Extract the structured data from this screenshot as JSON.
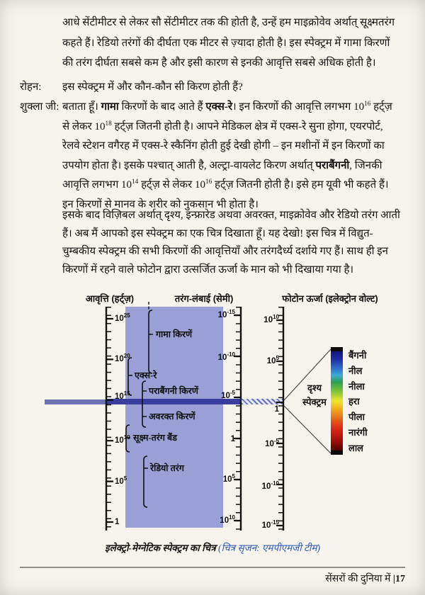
{
  "colors": {
    "page_bg": "#f7f4ee",
    "panel": "#9aa0d6",
    "visible_band": "#3a3e9f",
    "caption_credit_blue": "#2d59ad"
  },
  "intro": {
    "lines": [
      [
        {
          "t": "आधे सेंटीमीटर से लेकर सौ सेंटीमीटर तक की होती है, उन्हें हम माइक्रोवेव अर्थात् सूक्ष्मतरंग"
        }
      ],
      [
        {
          "t": "कहते हैं। रेडियो तरंगों की दीर्घता एक मीटर से ज़्यादा होती है। इस स्पेक्ट्रम में गामा किरणों"
        }
      ],
      [
        {
          "t": "की तरंग दीर्घता सबसे कम है और इसी कारण से इनकी आवृत्ति सबसे अधिक होती है।"
        }
      ]
    ]
  },
  "dialog": {
    "rohan_speaker": "रोहन:",
    "rohan_line": [
      [
        {
          "t": "इस स्पेक्ट्रम में और कौन-कौन सी किरण होती हैं?"
        }
      ]
    ],
    "shukla_speaker": "शुक्ला जी:",
    "shukla_lines": [
      [
        {
          "t": "बताता हूँ। "
        },
        {
          "t": "गामा",
          "b": true
        },
        {
          "t": " किरणों के बाद आते हैं "
        },
        {
          "t": "एक्स-रे",
          "b": true
        },
        {
          "t": "। इन किरणों की आवृत्ति लगभग 10"
        },
        {
          "t": "16",
          "sup": true
        },
        {
          "t": " हर्ट्ज़"
        }
      ],
      [
        {
          "t": "से लेकर 10"
        },
        {
          "t": "18",
          "sup": true
        },
        {
          "t": " हर्ट्ज़ जितनी होती है। आपने मेडिकल क्षेत्र में एक्स-रे सुना होगा, एयरपोर्ट,"
        }
      ],
      [
        {
          "t": "रेलवे स्टेशन वगैरह में एक्स-रे स्कैनिंग होती हुई देखी होगी – इन मशीनों में इन किरणों का"
        }
      ],
      [
        {
          "t": "उपयोग होता है। इसके पश्चात् आती है, अल्ट्रा-वायलेट किरण अर्थात् "
        },
        {
          "t": "पराबैंगनी",
          "b": true
        },
        {
          "t": ", जिनकी"
        }
      ],
      [
        {
          "t": "आवृत्ति लगभग 10"
        },
        {
          "t": "14",
          "sup": true
        },
        {
          "t": " हर्ट्ज़ से लेकर 10"
        },
        {
          "t": "16",
          "sup": true
        },
        {
          "t": " हर्ट्ज़ जितनी होती है। इसे हम यूवी भी कहते हैं।"
        }
      ],
      [
        {
          "t": "इन किरणों से मानव के शरीर को नुकसान भी होता है।"
        }
      ]
    ],
    "shukla_para2_lines": [
      [
        {
          "t": "इसके बाद विज़िबल अर्थात् दृश्य, इन्फ्रारेड अथवा अवरक्त, माइक्रोवेव और रेडियो तरंग आती"
        }
      ],
      [
        {
          "t": "हैं। अब मैं आपको इस स्पेक्ट्रम का एक चित्र दिखाता हूँ। यह देखो! इस चित्र में विद्युत-"
        }
      ],
      [
        {
          "t": "चुम्बकीय स्पेक्ट्रम की सभी किरणों की आवृत्तियाँ और तरंगदैर्ध्य दर्शाये गए हैं। साथ ही इन"
        }
      ],
      [
        {
          "t": "किरणों में रहने वाले फोटोन द्वारा उत्सर्जित ऊर्जा के मान को भी दिखाया गया है।"
        }
      ]
    ]
  },
  "diagram": {
    "headers": {
      "frequency": "आवृत्ति (हर्ट्ज़)",
      "wavelength": "तरंग-लंबाई (सेमी)",
      "energy": "फोटोन ऊर्जा (इलेक्ट्रोन वोल्ट)"
    },
    "frequency_ticks": [
      {
        "base": "10",
        "exp": "25"
      },
      {
        "base": "10",
        "exp": "20"
      },
      {
        "base": "10",
        "exp": "15"
      },
      {
        "base": "10",
        "exp": "10"
      },
      {
        "base": "10",
        "exp": "5"
      },
      {
        "base": "1",
        "exp": ""
      }
    ],
    "wavelength_ticks": [
      {
        "base": "10",
        "exp": "-15"
      },
      {
        "base": "10",
        "exp": "-10"
      },
      {
        "base": "10",
        "exp": "-5"
      },
      {
        "base": "1",
        "exp": ""
      },
      {
        "base": "10",
        "exp": "5"
      },
      {
        "base": "10",
        "exp": "10"
      }
    ],
    "energy_ticks": [
      {
        "base": "10",
        "exp": "10"
      },
      {
        "base": "10",
        "exp": "5"
      },
      {
        "base": "1",
        "exp": ""
      },
      {
        "base": "10",
        "exp": "-5"
      },
      {
        "base": "10",
        "exp": "-10"
      },
      {
        "base": "10",
        "exp": "-15"
      }
    ],
    "bands": {
      "gamma": "गामा किरणें",
      "xray": "एक्स-रे",
      "uv": "पराबैंगनी किरणें",
      "infrared": "अवरक्त किरणें",
      "microwave": "सूक्ष्म-तरंग बैंड",
      "radio": "रेडियो तरंग"
    },
    "visible": {
      "line1": "दृश्य",
      "line2": "स्पेक्ट्रम"
    },
    "spectrum_colors": [
      {
        "name": "बैंगनी",
        "hex": "#16157f"
      },
      {
        "name": "नील",
        "hex": "#2e6ecb"
      },
      {
        "name": "नीला",
        "hex": "#3fa9d8"
      },
      {
        "name": "हरा",
        "hex": "#2e9e53"
      },
      {
        "name": "पीला",
        "hex": "#efe52f"
      },
      {
        "name": "नारंगी",
        "hex": "#efa21f"
      },
      {
        "name": "लाल",
        "hex": "#d92a16"
      }
    ]
  },
  "caption": {
    "main": "इलेक्ट्रो-मेग्नेटिक स्पेक्ट्रम का चित्र ",
    "credit": "(चित्र सृजन: एमपीएमजी टीम)"
  },
  "footer": {
    "title": "सेंसरों की दुनिया में ",
    "page": "|17"
  }
}
